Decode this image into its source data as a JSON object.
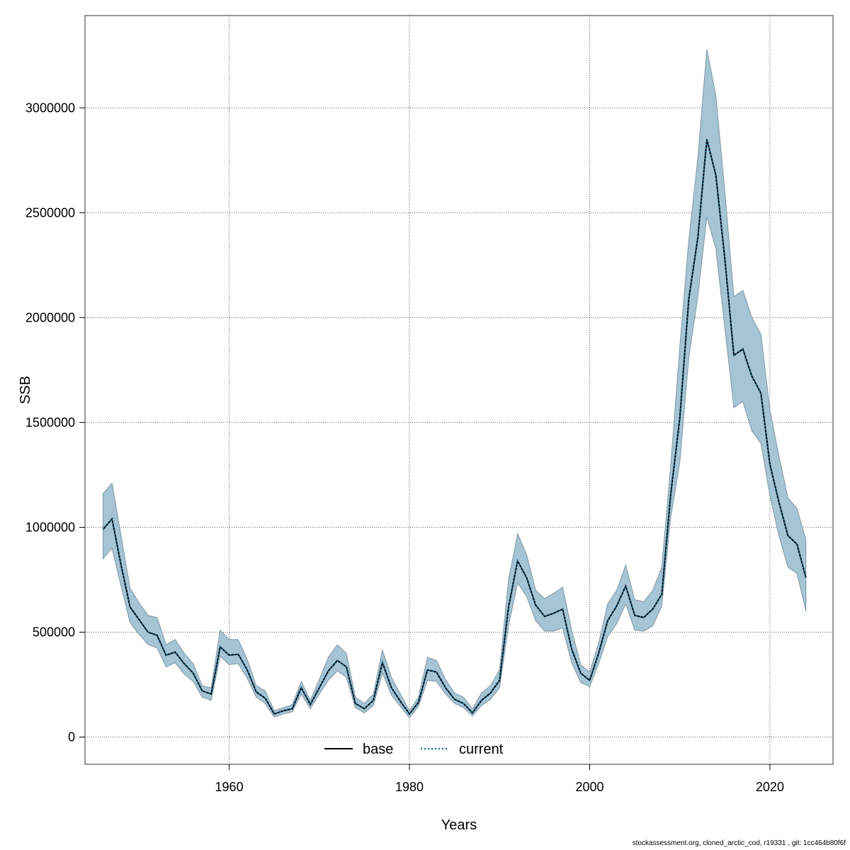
{
  "chart_data": {
    "type": "line",
    "xlabel": "Years",
    "ylabel": "SSB",
    "xlim": [
      1944,
      2027
    ],
    "ylim": [
      -130000,
      3440000
    ],
    "x_ticks": [
      1960,
      1980,
      2000,
      2020
    ],
    "y_ticks": [
      0,
      500000,
      1000000,
      1500000,
      2000000,
      2500000,
      3000000
    ],
    "grid": true,
    "legend": {
      "position": "bottom-center",
      "entries": [
        "base",
        "current"
      ]
    },
    "colors": {
      "band": "#a5c4d4",
      "band_edge": "#7f98a6",
      "base": "#000000",
      "current": "#1a6e96",
      "grid": "#555555"
    },
    "x": [
      1946,
      1947,
      1948,
      1949,
      1950,
      1951,
      1952,
      1953,
      1954,
      1955,
      1956,
      1957,
      1958,
      1959,
      1960,
      1961,
      1962,
      1963,
      1964,
      1965,
      1966,
      1967,
      1968,
      1969,
      1970,
      1971,
      1972,
      1973,
      1974,
      1975,
      1976,
      1977,
      1978,
      1979,
      1980,
      1981,
      1982,
      1983,
      1984,
      1985,
      1986,
      1987,
      1988,
      1989,
      1990,
      1991,
      1992,
      1993,
      1994,
      1995,
      1996,
      1997,
      1998,
      1999,
      2000,
      2001,
      2002,
      2003,
      2004,
      2005,
      2006,
      2007,
      2008,
      2009,
      2010,
      2011,
      2012,
      2013,
      2014,
      2015,
      2016,
      2017,
      2018,
      2019,
      2020,
      2021,
      2022,
      2023,
      2024
    ],
    "series": [
      {
        "name": "base",
        "style": "solid",
        "values": [
          990000,
          1040000,
          820000,
          620000,
          560000,
          500000,
          485000,
          390000,
          405000,
          350000,
          305000,
          220000,
          205000,
          430000,
          390000,
          395000,
          320000,
          215000,
          185000,
          110000,
          125000,
          135000,
          235000,
          155000,
          235000,
          315000,
          365000,
          335000,
          160000,
          135000,
          175000,
          355000,
          235000,
          170000,
          110000,
          165000,
          320000,
          310000,
          235000,
          180000,
          160000,
          115000,
          175000,
          210000,
          270000,
          620000,
          840000,
          760000,
          630000,
          575000,
          590000,
          610000,
          420000,
          305000,
          270000,
          400000,
          555000,
          625000,
          720000,
          580000,
          570000,
          610000,
          680000,
          1160000,
          1520000,
          2090000,
          2380000,
          2850000,
          2680000,
          2280000,
          1820000,
          1850000,
          1720000,
          1640000,
          1300000,
          1120000,
          960000,
          920000,
          760000
        ]
      },
      {
        "name": "current",
        "style": "dotted",
        "values": [
          990000,
          1040000,
          820000,
          620000,
          560000,
          500000,
          485000,
          390000,
          405000,
          350000,
          305000,
          220000,
          205000,
          430000,
          390000,
          395000,
          320000,
          215000,
          185000,
          110000,
          125000,
          135000,
          235000,
          155000,
          235000,
          315000,
          365000,
          335000,
          160000,
          135000,
          175000,
          355000,
          235000,
          170000,
          110000,
          165000,
          320000,
          310000,
          235000,
          180000,
          160000,
          115000,
          175000,
          210000,
          270000,
          620000,
          840000,
          760000,
          630000,
          575000,
          590000,
          610000,
          420000,
          305000,
          270000,
          400000,
          555000,
          625000,
          720000,
          580000,
          570000,
          610000,
          680000,
          1160000,
          1520000,
          2090000,
          2380000,
          2850000,
          2680000,
          2280000,
          1820000,
          1850000,
          1720000,
          1640000,
          1300000,
          1120000,
          960000,
          920000,
          760000
        ]
      }
    ],
    "confidence_band": {
      "upper": [
        1160000,
        1210000,
        960000,
        710000,
        640000,
        580000,
        570000,
        440000,
        465000,
        400000,
        350000,
        245000,
        235000,
        510000,
        465000,
        465000,
        370000,
        245000,
        220000,
        125000,
        140000,
        155000,
        265000,
        175000,
        275000,
        380000,
        440000,
        400000,
        190000,
        160000,
        205000,
        415000,
        285000,
        205000,
        125000,
        190000,
        380000,
        365000,
        275000,
        210000,
        190000,
        135000,
        210000,
        245000,
        320000,
        750000,
        970000,
        870000,
        700000,
        660000,
        685000,
        715000,
        510000,
        345000,
        310000,
        450000,
        635000,
        700000,
        820000,
        655000,
        645000,
        700000,
        810000,
        1300000,
        1860000,
        2370000,
        2760000,
        3280000,
        3060000,
        2600000,
        2100000,
        2130000,
        2000000,
        1920000,
        1560000,
        1340000,
        1140000,
        1090000,
        940000
      ],
      "lower": [
        850000,
        900000,
        720000,
        545000,
        490000,
        440000,
        425000,
        335000,
        355000,
        300000,
        265000,
        190000,
        175000,
        385000,
        345000,
        350000,
        280000,
        190000,
        160000,
        95000,
        110000,
        120000,
        205000,
        135000,
        205000,
        270000,
        315000,
        285000,
        140000,
        115000,
        150000,
        305000,
        200000,
        145000,
        92000,
        145000,
        270000,
        265000,
        205000,
        160000,
        140000,
        100000,
        150000,
        180000,
        235000,
        530000,
        735000,
        670000,
        555000,
        505000,
        505000,
        520000,
        355000,
        260000,
        240000,
        350000,
        480000,
        540000,
        635000,
        510000,
        505000,
        530000,
        625000,
        1050000,
        1310000,
        1810000,
        2100000,
        2480000,
        2330000,
        1950000,
        1570000,
        1600000,
        1460000,
        1400000,
        1150000,
        960000,
        810000,
        780000,
        600000
      ]
    }
  },
  "footer_text": "stockassessment.org, cloned_arctic_cod, r19331 , git: 1cc464b80f6f"
}
